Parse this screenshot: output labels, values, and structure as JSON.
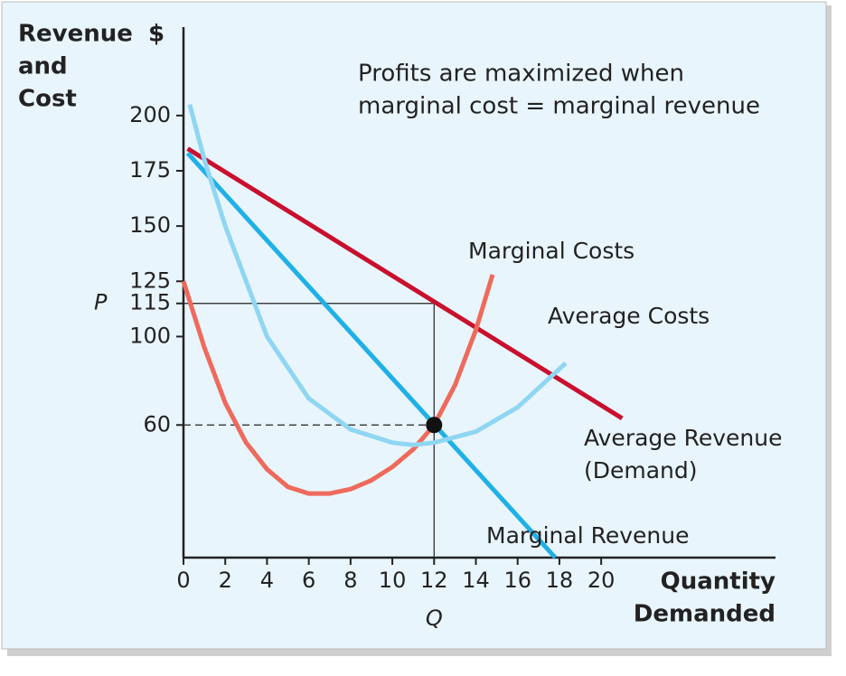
{
  "chart_data": {
    "type": "line",
    "y_label": [
      "Revenue",
      "and",
      "Cost"
    ],
    "y_unit": "$",
    "x_label": [
      "Quantity",
      "Demanded"
    ],
    "annotation": [
      "Profits are maximized when",
      "marginal cost = marginal revenue"
    ],
    "xlim": [
      0,
      28
    ],
    "ylim": [
      0,
      240
    ],
    "xticks": [
      0,
      2,
      4,
      6,
      8,
      10,
      12,
      14,
      16,
      18,
      20
    ],
    "yticks": [
      60,
      100,
      115,
      125,
      150,
      175,
      200
    ],
    "price_label": "P",
    "quantity_label": "Q",
    "optimum": {
      "x": 12,
      "y": 60,
      "price": 115
    },
    "series": [
      {
        "name": "Average Revenue (Demand)",
        "color": "#c8102e",
        "x": [
          0.2,
          21
        ],
        "values": [
          185,
          63
        ]
      },
      {
        "name": "Marginal Revenue",
        "color": "#1fb0e6",
        "x": [
          0.2,
          17.8
        ],
        "values": [
          183,
          0
        ]
      },
      {
        "name": "Marginal Costs",
        "color": "#ee6a5c",
        "x": [
          0,
          1,
          2,
          3,
          4,
          5,
          6,
          7,
          8,
          9,
          10,
          11,
          12,
          13,
          14,
          14.8
        ],
        "values": [
          125,
          95,
          70,
          52,
          40,
          32,
          29,
          29,
          31,
          35,
          41,
          49,
          60,
          78,
          103,
          128
        ]
      },
      {
        "name": "Average Costs",
        "color": "#8fd6f2",
        "x": [
          0.3,
          1,
          2,
          4,
          6,
          8,
          10,
          11,
          12,
          14,
          16,
          18.3
        ],
        "values": [
          205,
          180,
          150,
          100,
          72,
          58,
          52,
          51,
          52,
          57,
          68,
          88
        ]
      }
    ]
  }
}
